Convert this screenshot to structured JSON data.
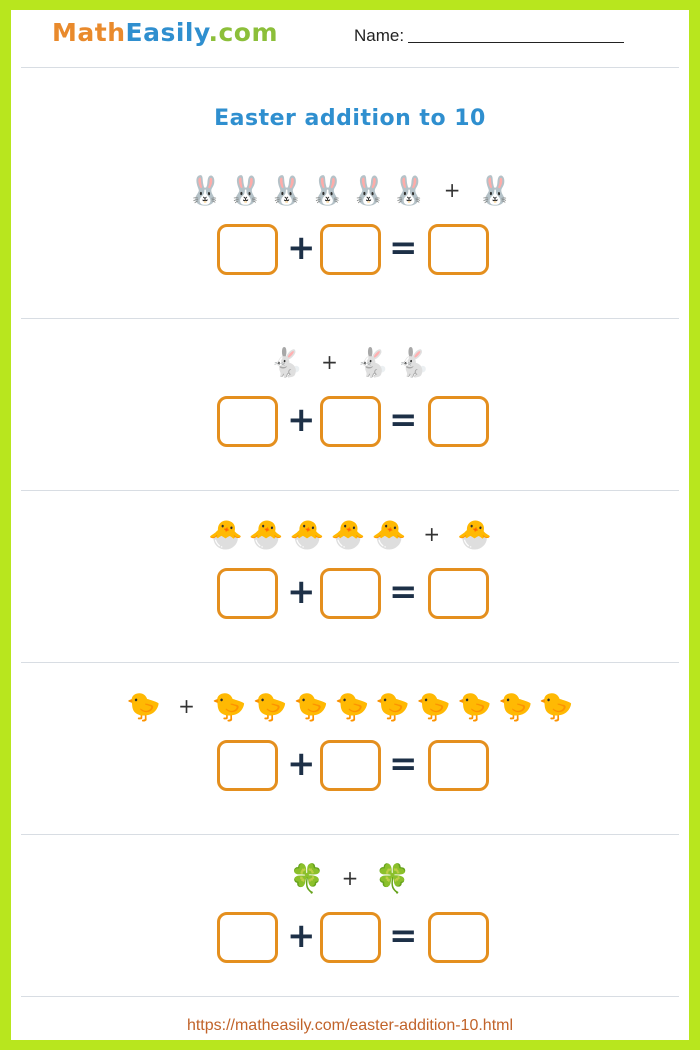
{
  "header": {
    "logo": {
      "part1": "Math",
      "part2": "Easily",
      "part3": ".com"
    },
    "name_label": "Name:"
  },
  "title": "Easter addition to 10",
  "questions": [
    {
      "icon": "🐰",
      "icon_name": "rabbit-face",
      "left_count": 6,
      "right_count": 1
    },
    {
      "icon": "🐇",
      "icon_name": "rabbit",
      "left_count": 1,
      "right_count": 2
    },
    {
      "icon": "🐣",
      "icon_name": "hatching-chick",
      "left_count": 5,
      "right_count": 1
    },
    {
      "icon": "🐤",
      "icon_name": "baby-chick",
      "left_count": 1,
      "right_count": 9
    },
    {
      "icon": "🍀",
      "icon_name": "four-leaf-clover",
      "left_count": 1,
      "right_count": 1
    }
  ],
  "operators": {
    "plus": "+",
    "equals": "="
  },
  "footer": {
    "url": "https://matheasily.com/easter-addition-10.html"
  },
  "colors": {
    "border": "#b8e61e",
    "box": "#e48f1e",
    "title": "#2f8fcf"
  }
}
